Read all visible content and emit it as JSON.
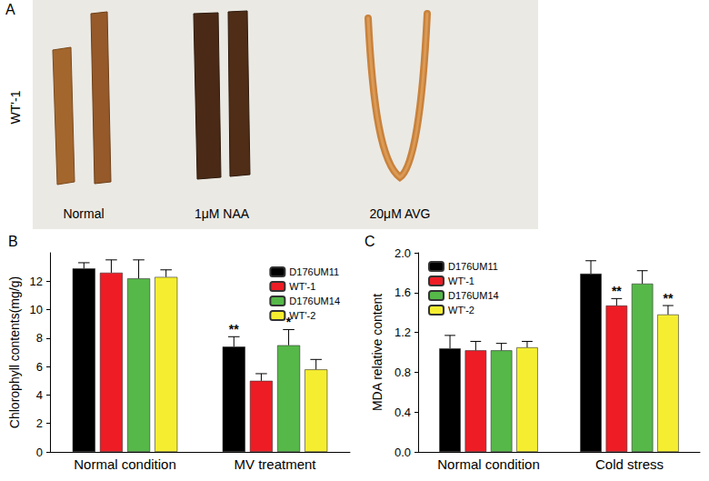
{
  "panel_a": {
    "label": "A",
    "row_label": "WT'-1",
    "treatments": [
      "Normal",
      "1μM NAA",
      "20μM AVG"
    ]
  },
  "chart_data": [
    {
      "type": "bar",
      "title": "B",
      "ylabel": "Chlorophyll contents(mg/g)",
      "categories": [
        "Normal condition",
        "MV treatment"
      ],
      "series": [
        {
          "name": "D176UM11",
          "color": "#000000",
          "values": [
            12.9,
            7.4
          ],
          "errors": [
            0.4,
            0.7
          ]
        },
        {
          "name": "WT'-1",
          "color": "#ee1c25",
          "values": [
            12.6,
            5.0
          ],
          "errors": [
            0.9,
            0.5
          ]
        },
        {
          "name": "D176UM14",
          "color": "#55b848",
          "values": [
            12.2,
            7.5
          ],
          "errors": [
            1.3,
            1.1
          ]
        },
        {
          "name": "WT'-2",
          "color": "#f5ee30",
          "values": [
            12.3,
            5.8
          ],
          "errors": [
            0.5,
            0.7
          ]
        }
      ],
      "ylim": [
        0,
        14
      ],
      "yticks": [
        0,
        2,
        4,
        6,
        8,
        10,
        12
      ],
      "legend": "upper right",
      "annotations": [
        {
          "text": "**",
          "category": "MV treatment",
          "series": "D176UM11"
        },
        {
          "text": "*",
          "category": "MV treatment",
          "series": "D176UM14"
        }
      ]
    },
    {
      "type": "bar",
      "title": "C",
      "ylabel": "MDA relative content",
      "categories": [
        "Normal condition",
        "Cold stress"
      ],
      "series": [
        {
          "name": "D176UM11",
          "color": "#000000",
          "values": [
            1.04,
            1.79
          ],
          "errors": [
            0.13,
            0.13
          ]
        },
        {
          "name": "WT'-1",
          "color": "#ee1c25",
          "values": [
            1.02,
            1.47
          ],
          "errors": [
            0.09,
            0.07
          ]
        },
        {
          "name": "D176UM14",
          "color": "#55b848",
          "values": [
            1.02,
            1.69
          ],
          "errors": [
            0.07,
            0.13
          ]
        },
        {
          "name": "WT'-2",
          "color": "#f5ee30",
          "values": [
            1.05,
            1.38
          ],
          "errors": [
            0.06,
            0.09
          ]
        }
      ],
      "ylim": [
        0,
        2.0
      ],
      "yticks": [
        {
          "value": 0,
          "label": "0.0"
        },
        0.4,
        0.8,
        1.2,
        1.6,
        {
          "value": 2.0,
          "label": "2.0"
        }
      ],
      "legend": "upper left",
      "annotations": [
        {
          "text": "**",
          "category": "Cold stress",
          "series": "WT'-1"
        },
        {
          "text": "**",
          "category": "Cold stress",
          "series": "WT'-2"
        }
      ]
    }
  ]
}
